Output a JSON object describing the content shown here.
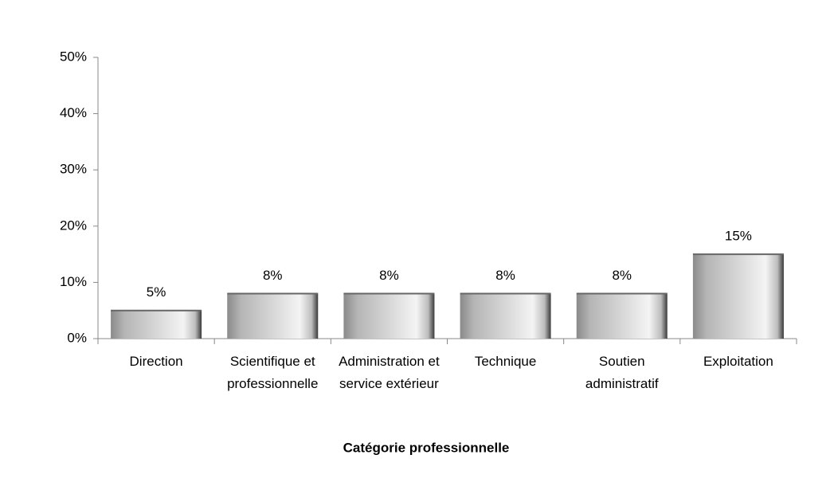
{
  "chart_data": {
    "type": "bar",
    "x_label": "Catégorie professionnelle",
    "categories": [
      "Direction",
      "Scientifique et professionnelle",
      "Administration et service extérieur",
      "Technique",
      "Soutien administratif",
      "Exploitation"
    ],
    "values": [
      5,
      8,
      8,
      8,
      8,
      15
    ],
    "value_labels": [
      "5%",
      "8%",
      "8%",
      "8%",
      "8%",
      "15%"
    ],
    "color": "#d0d0d0",
    "ylim": [
      0,
      50
    ],
    "yticks": [
      {
        "value": 0,
        "label": "0%"
      },
      {
        "value": 10,
        "label": "10%"
      },
      {
        "value": 20,
        "label": "20%"
      },
      {
        "value": 30,
        "label": "30%"
      },
      {
        "value": 40,
        "label": "40%"
      },
      {
        "value": 50,
        "label": "50%"
      }
    ],
    "grid": false
  }
}
